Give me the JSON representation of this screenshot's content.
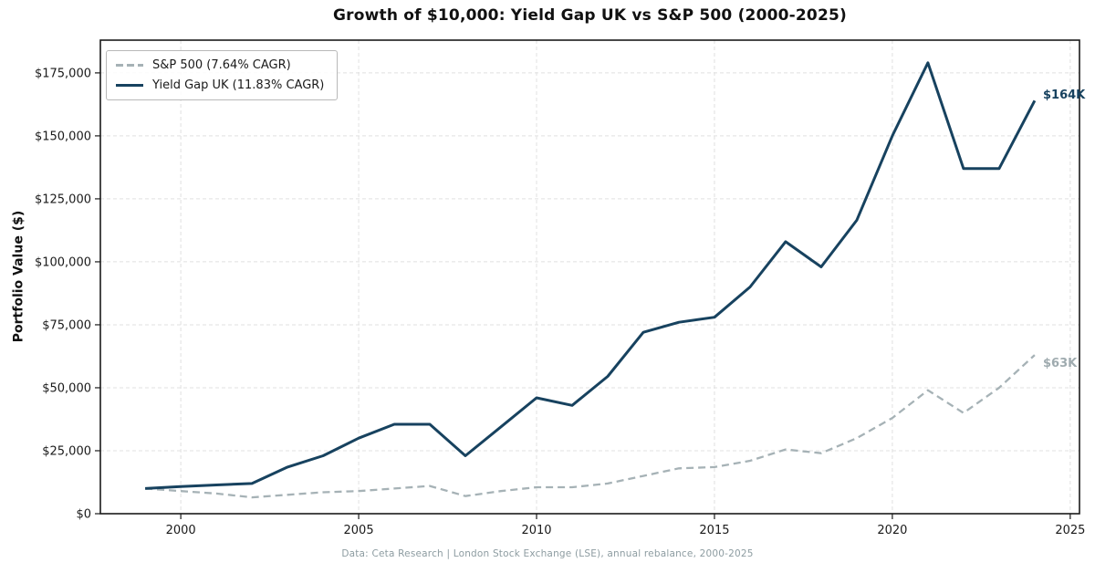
{
  "chart_data": {
    "type": "line",
    "title": "Growth of $10,000: Yield Gap UK vs S&P 500 (2000-2025)",
    "xlabel": "",
    "ylabel": "Portfolio Value ($)",
    "footnote": "Data: Ceta Research | London Stock Exchange (LSE), annual rebalance, 2000-2025",
    "x": [
      1999,
      2000,
      2001,
      2002,
      2003,
      2004,
      2005,
      2006,
      2007,
      2008,
      2009,
      2010,
      2011,
      2012,
      2013,
      2014,
      2015,
      2016,
      2017,
      2018,
      2019,
      2020,
      2021,
      2022,
      2023,
      2024
    ],
    "series": [
      {
        "id": "sp500",
        "name": "S&P 500 (7.64% CAGR)",
        "color": "#a6b2b6",
        "style": "dashed",
        "values": [
          10000,
          9000,
          8000,
          6500,
          7500,
          8500,
          9000,
          10000,
          11000,
          7000,
          9000,
          10500,
          10500,
          12000,
          15000,
          18000,
          18500,
          21000,
          25500,
          24000,
          30000,
          38000,
          49000,
          40000,
          50000,
          63000
        ]
      },
      {
        "id": "yield_gap_uk",
        "name": "Yield Gap UK (11.83% CAGR)",
        "color": "#17425f",
        "style": "solid",
        "values": [
          10000,
          10800,
          11400,
          12000,
          18500,
          23000,
          30000,
          35500,
          35500,
          23000,
          34500,
          46000,
          43000,
          54500,
          72000,
          76000,
          78000,
          90000,
          108000,
          98000,
          116500,
          150000,
          179000,
          137000,
          137000,
          164000
        ]
      }
    ],
    "xticks": [
      2000,
      2005,
      2010,
      2015,
      2020,
      2025
    ],
    "yticks": [
      0,
      25000,
      50000,
      75000,
      100000,
      125000,
      150000,
      175000
    ],
    "ytick_labels": [
      "$0",
      "$25,000",
      "$50,000",
      "$75,000",
      "$100,000",
      "$125,000",
      "$150,000",
      "$175,000"
    ],
    "xlim": [
      1997.74,
      2025.26
    ],
    "ylim": [
      0,
      188000
    ],
    "grid": true,
    "legend_position": "upper left",
    "end_labels": {
      "sp500": "$63K",
      "yield_gap": "$164K"
    }
  }
}
